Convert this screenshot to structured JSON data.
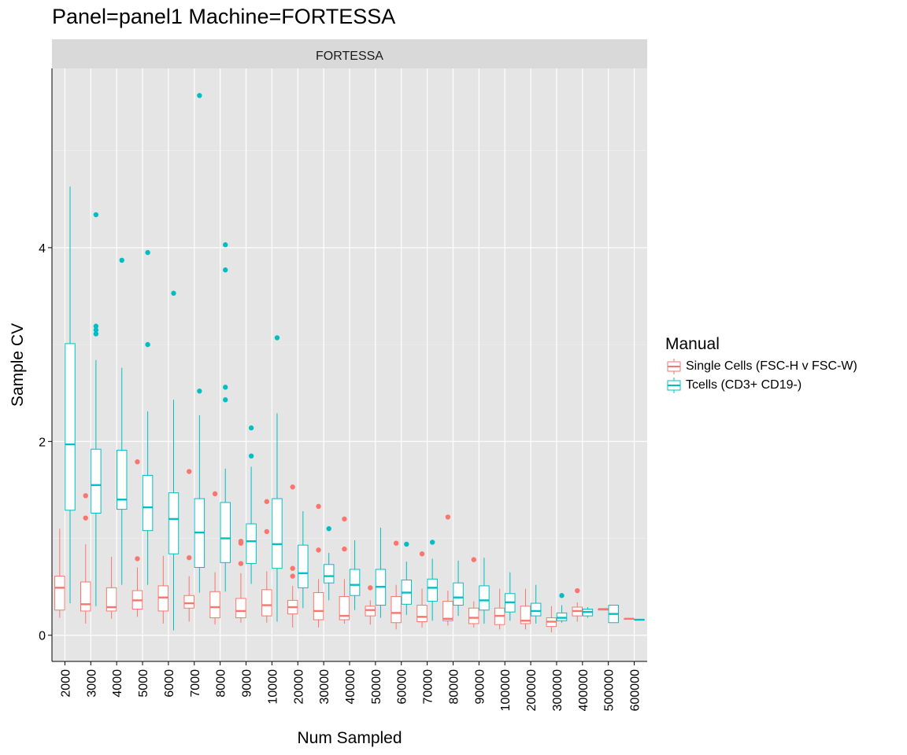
{
  "chart_data": {
    "type": "box",
    "title": "Panel=panel1 Machine=FORTESSA",
    "facet_label": "FORTESSA",
    "xlabel": "Num Sampled",
    "ylabel": "Sample CV",
    "categories": [
      "2000",
      "3000",
      "4000",
      "5000",
      "6000",
      "7000",
      "8000",
      "9000",
      "10000",
      "20000",
      "30000",
      "40000",
      "50000",
      "60000",
      "70000",
      "80000",
      "90000",
      "100000",
      "200000",
      "300000",
      "400000",
      "500000",
      "600000"
    ],
    "yticks": [
      0,
      2,
      4
    ],
    "ylim": [
      -0.27,
      5.85
    ],
    "grid": true,
    "legend": {
      "title": "Manual",
      "position": "right",
      "entries": [
        "Single Cells (FSC-H v FSC-W)",
        "Tcells (CD3+ CD19-)"
      ]
    },
    "series": [
      {
        "name": "Single Cells (FSC-H v FSC-W)",
        "color": "#F8766D",
        "boxes": [
          {
            "wmin": 0.18,
            "q1": 0.26,
            "med": 0.49,
            "q3": 0.61,
            "wmax": 1.1,
            "out": []
          },
          {
            "wmin": 0.12,
            "q1": 0.25,
            "med": 0.32,
            "q3": 0.55,
            "wmax": 0.94,
            "out": [
              1.21,
              1.44
            ]
          },
          {
            "wmin": 0.17,
            "q1": 0.25,
            "med": 0.29,
            "q3": 0.49,
            "wmax": 0.81,
            "out": []
          },
          {
            "wmin": 0.19,
            "q1": 0.27,
            "med": 0.36,
            "q3": 0.46,
            "wmax": 0.7,
            "out": [
              0.79,
              1.79
            ]
          },
          {
            "wmin": 0.12,
            "q1": 0.25,
            "med": 0.39,
            "q3": 0.51,
            "wmax": 0.82,
            "out": []
          },
          {
            "wmin": 0.14,
            "q1": 0.28,
            "med": 0.33,
            "q3": 0.41,
            "wmax": 0.61,
            "out": [
              0.8,
              1.69
            ]
          },
          {
            "wmin": 0.11,
            "q1": 0.18,
            "med": 0.29,
            "q3": 0.45,
            "wmax": 0.65,
            "out": [
              1.46
            ]
          },
          {
            "wmin": 0.13,
            "q1": 0.18,
            "med": 0.25,
            "q3": 0.38,
            "wmax": 0.64,
            "out": [
              0.74,
              0.95,
              0.97
            ]
          },
          {
            "wmin": 0.13,
            "q1": 0.2,
            "med": 0.31,
            "q3": 0.47,
            "wmax": 0.66,
            "out": [
              1.07,
              1.38
            ]
          },
          {
            "wmin": 0.08,
            "q1": 0.22,
            "med": 0.29,
            "q3": 0.36,
            "wmax": 0.51,
            "out": [
              0.61,
              0.69,
              1.53
            ]
          },
          {
            "wmin": 0.08,
            "q1": 0.16,
            "med": 0.25,
            "q3": 0.44,
            "wmax": 0.58,
            "out": [
              0.88,
              1.33
            ]
          },
          {
            "wmin": 0.12,
            "q1": 0.16,
            "med": 0.2,
            "q3": 0.4,
            "wmax": 0.58,
            "out": [
              0.89,
              1.2
            ]
          },
          {
            "wmin": 0.11,
            "q1": 0.2,
            "med": 0.26,
            "q3": 0.3,
            "wmax": 0.36,
            "out": [
              0.49
            ]
          },
          {
            "wmin": 0.06,
            "q1": 0.13,
            "med": 0.23,
            "q3": 0.4,
            "wmax": 0.52,
            "out": [
              0.95
            ]
          },
          {
            "wmin": 0.08,
            "q1": 0.14,
            "med": 0.19,
            "q3": 0.31,
            "wmax": 0.48,
            "out": [
              0.84
            ]
          },
          {
            "wmin": 0.1,
            "q1": 0.15,
            "med": 0.17,
            "q3": 0.35,
            "wmax": 0.46,
            "out": [
              1.22
            ]
          },
          {
            "wmin": 0.08,
            "q1": 0.12,
            "med": 0.18,
            "q3": 0.28,
            "wmax": 0.35,
            "out": [
              0.78
            ]
          },
          {
            "wmin": 0.06,
            "q1": 0.11,
            "med": 0.2,
            "q3": 0.28,
            "wmax": 0.48,
            "out": []
          },
          {
            "wmin": 0.06,
            "q1": 0.12,
            "med": 0.15,
            "q3": 0.3,
            "wmax": 0.48,
            "out": []
          },
          {
            "wmin": 0.03,
            "q1": 0.09,
            "med": 0.14,
            "q3": 0.18,
            "wmax": 0.3,
            "out": []
          },
          {
            "wmin": 0.14,
            "q1": 0.2,
            "med": 0.25,
            "q3": 0.29,
            "wmax": 0.34,
            "out": [
              0.46
            ]
          },
          {
            "wmin": 0.26,
            "q1": 0.26,
            "med": 0.27,
            "q3": 0.27,
            "wmax": 0.27,
            "out": []
          },
          {
            "wmin": 0.17,
            "q1": 0.17,
            "med": 0.17,
            "q3": 0.17,
            "wmax": 0.17,
            "out": []
          }
        ]
      },
      {
        "name": "Tcells (CD3+ CD19-)",
        "color": "#00BFC4",
        "boxes": [
          {
            "wmin": 0.33,
            "q1": 1.29,
            "med": 1.97,
            "q3": 3.01,
            "wmax": 4.63,
            "out": []
          },
          {
            "wmin": 0.3,
            "q1": 1.26,
            "med": 1.55,
            "q3": 1.92,
            "wmax": 2.84,
            "out": [
              3.11,
              3.15,
              3.19,
              4.34
            ]
          },
          {
            "wmin": 0.52,
            "q1": 1.3,
            "med": 1.4,
            "q3": 1.91,
            "wmax": 2.76,
            "out": [
              3.87
            ]
          },
          {
            "wmin": 0.52,
            "q1": 1.08,
            "med": 1.32,
            "q3": 1.65,
            "wmax": 2.31,
            "out": [
              3.0,
              3.95
            ]
          },
          {
            "wmin": 0.05,
            "q1": 0.84,
            "med": 1.2,
            "q3": 1.47,
            "wmax": 2.43,
            "out": [
              3.53
            ]
          },
          {
            "wmin": 0.44,
            "q1": 0.7,
            "med": 1.06,
            "q3": 1.41,
            "wmax": 2.27,
            "out": [
              2.52,
              5.57
            ]
          },
          {
            "wmin": 0.45,
            "q1": 0.75,
            "med": 1.0,
            "q3": 1.37,
            "wmax": 1.72,
            "out": [
              2.43,
              2.56,
              3.77,
              4.03
            ]
          },
          {
            "wmin": 0.53,
            "q1": 0.74,
            "med": 0.97,
            "q3": 1.15,
            "wmax": 1.74,
            "out": [
              1.85,
              2.14
            ]
          },
          {
            "wmin": 0.14,
            "q1": 0.69,
            "med": 0.94,
            "q3": 1.41,
            "wmax": 2.29,
            "out": [
              3.07
            ]
          },
          {
            "wmin": 0.28,
            "q1": 0.49,
            "med": 0.64,
            "q3": 0.93,
            "wmax": 1.28,
            "out": []
          },
          {
            "wmin": 0.36,
            "q1": 0.54,
            "med": 0.61,
            "q3": 0.73,
            "wmax": 0.85,
            "out": [
              1.1
            ]
          },
          {
            "wmin": 0.26,
            "q1": 0.41,
            "med": 0.52,
            "q3": 0.68,
            "wmax": 0.98,
            "out": []
          },
          {
            "wmin": 0.18,
            "q1": 0.31,
            "med": 0.5,
            "q3": 0.68,
            "wmax": 1.11,
            "out": []
          },
          {
            "wmin": 0.21,
            "q1": 0.32,
            "med": 0.44,
            "q3": 0.57,
            "wmax": 0.76,
            "out": [
              0.94
            ]
          },
          {
            "wmin": 0.15,
            "q1": 0.35,
            "med": 0.49,
            "q3": 0.58,
            "wmax": 0.79,
            "out": [
              0.96
            ]
          },
          {
            "wmin": 0.2,
            "q1": 0.31,
            "med": 0.39,
            "q3": 0.54,
            "wmax": 0.77,
            "out": []
          },
          {
            "wmin": 0.12,
            "q1": 0.26,
            "med": 0.36,
            "q3": 0.51,
            "wmax": 0.8,
            "out": []
          },
          {
            "wmin": 0.15,
            "q1": 0.24,
            "med": 0.34,
            "q3": 0.43,
            "wmax": 0.65,
            "out": []
          },
          {
            "wmin": 0.12,
            "q1": 0.2,
            "med": 0.25,
            "q3": 0.33,
            "wmax": 0.52,
            "out": []
          },
          {
            "wmin": 0.13,
            "q1": 0.15,
            "med": 0.18,
            "q3": 0.23,
            "wmax": 0.31,
            "out": [
              0.41
            ]
          },
          {
            "wmin": 0.18,
            "q1": 0.2,
            "med": 0.24,
            "q3": 0.27,
            "wmax": 0.29,
            "out": []
          },
          {
            "wmin": 0.13,
            "q1": 0.13,
            "med": 0.22,
            "q3": 0.31,
            "wmax": 0.31,
            "out": []
          },
          {
            "wmin": 0.16,
            "q1": 0.16,
            "med": 0.16,
            "q3": 0.16,
            "wmax": 0.16,
            "out": []
          }
        ]
      }
    ]
  }
}
